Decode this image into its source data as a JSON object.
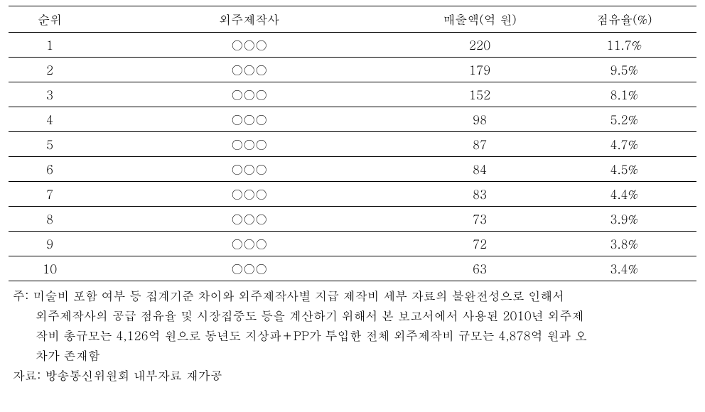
{
  "table": {
    "headers": [
      "순위",
      "외주제작사",
      "매출액(억 원)",
      "점유율(%)"
    ],
    "rows": [
      [
        "1",
        "○○○",
        "220",
        "11.7%"
      ],
      [
        "2",
        "○○○",
        "179",
        "9.5%"
      ],
      [
        "3",
        "○○○",
        "152",
        "8.1%"
      ],
      [
        "4",
        "○○○",
        "98",
        "5.2%"
      ],
      [
        "5",
        "○○○",
        "87",
        "4.7%"
      ],
      [
        "6",
        "○○○",
        "84",
        "4.5%"
      ],
      [
        "7",
        "○○○",
        "83",
        "4.4%"
      ],
      [
        "8",
        "○○○",
        "73",
        "3.9%"
      ],
      [
        "9",
        "○○○",
        "72",
        "3.8%"
      ],
      [
        "10",
        "○○○",
        "63",
        "3.4%"
      ]
    ]
  },
  "notes": {
    "line1": "주: 미술비 포함 여부 등 집계기준 차이와 외주제작사별 지급 제작비 세부 자료의 불완전성으로 인해서",
    "line2": "외주제작사의 공급 점유율 및 시장집중도 등을 계산하기 위해서 본 보고서에서 사용된 2010년 외주제",
    "line3": "작비 총규모는 4,126억 원으로 동년도 지상파＋PP가 투입한 전체 외주제작비 규모는 4,878억 원과 오",
    "line4": "차가 존재함",
    "source": "자료: 방송통신위원회 내부자료 재가공"
  }
}
